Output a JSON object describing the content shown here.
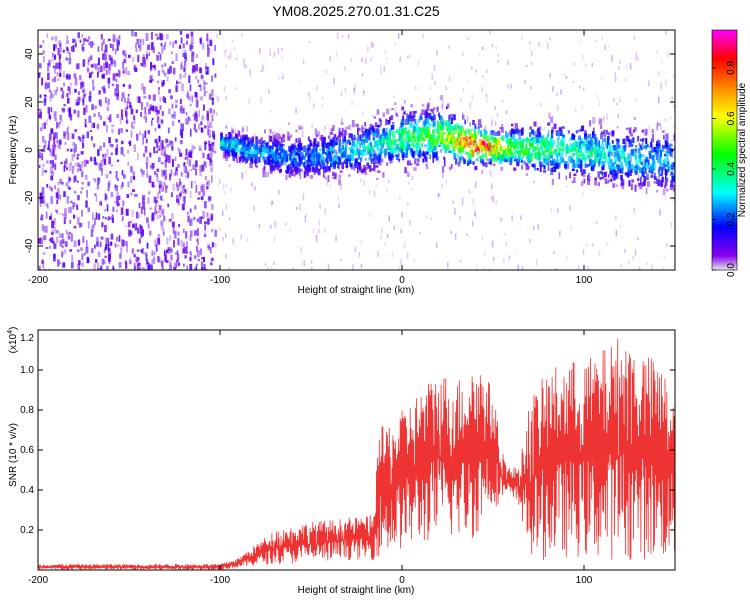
{
  "title": "YM08.2025.270.01.31.C25",
  "chart_data": [
    {
      "type": "heatmap",
      "name": "spectrogram",
      "title": "YM08.2025.270.01.31.C25",
      "xlabel": "Height of straight line (km)",
      "ylabel": "Frequency (Hz)",
      "xlim": [
        -200,
        150
      ],
      "ylim": [
        -50,
        50
      ],
      "x_ticks": [
        -200,
        -100,
        0,
        100
      ],
      "x_tick_labels": [
        "-200",
        "-100",
        "0",
        "100"
      ],
      "y_ticks": [
        -40,
        -20,
        0,
        20,
        40
      ],
      "y_tick_labels": [
        "-40",
        "-20",
        "0",
        "20",
        "40"
      ],
      "colorbar": {
        "label": "Normalized spectral amplitude",
        "range": [
          0,
          0.95
        ],
        "ticks": [
          0.0,
          0.2,
          0.4,
          0.6,
          0.8
        ],
        "tick_labels": [
          "0.0",
          "0.2",
          "0.4",
          "0.6",
          "0.8"
        ],
        "colormap": [
          "#e0e0e0",
          "#7700ee",
          "#0000ff",
          "#00ffff",
          "#00ff00",
          "#ffff00",
          "#ff8800",
          "#ff0000",
          "#ff00ff"
        ]
      },
      "noise_region_x": [
        -200,
        -103
      ],
      "signal_band": {
        "x": [
          -100,
          -80,
          -60,
          -40,
          -20,
          0,
          20,
          40,
          50,
          60,
          80,
          100,
          120,
          140,
          150
        ],
        "center_hz": [
          4,
          0,
          -2,
          -1,
          2,
          6,
          7,
          3,
          2,
          2,
          1,
          0,
          -2,
          -3,
          -4
        ],
        "half_width_hz": [
          5,
          8,
          10,
          10,
          11,
          12,
          12,
          9,
          7,
          9,
          12,
          12,
          13,
          13,
          13
        ],
        "peak_amplitude": [
          0.35,
          0.3,
          0.25,
          0.3,
          0.35,
          0.45,
          0.55,
          0.9,
          0.85,
          0.5,
          0.45,
          0.4,
          0.35,
          0.3,
          0.3
        ]
      }
    },
    {
      "type": "line",
      "name": "snr",
      "xlabel": "Height of straight line (km)",
      "ylabel": "SNR (10 * v/v)",
      "multiplier_label": "(x10",
      "multiplier_exp": "4",
      "xlim": [
        -200,
        150
      ],
      "ylim": [
        0,
        1.2
      ],
      "x_ticks": [
        -200,
        -100,
        0,
        100
      ],
      "x_tick_labels": [
        "-200",
        "-100",
        "0",
        "100"
      ],
      "y_ticks": [
        0.2,
        0.4,
        0.6,
        0.8,
        1.0,
        1.2
      ],
      "y_tick_labels": [
        "0.2",
        "0.4",
        "0.6",
        "0.8",
        "1.0",
        "1.2"
      ],
      "color": "#ee3333",
      "envelope": {
        "x": [
          -200,
          -110,
          -100,
          -90,
          -80,
          -70,
          -60,
          -50,
          -40,
          -30,
          -20,
          -15,
          -14,
          -5,
          0,
          10,
          20,
          30,
          40,
          45,
          50,
          55,
          60,
          65,
          70,
          80,
          90,
          100,
          110,
          120,
          130,
          140,
          150
        ],
        "upper": [
          0.03,
          0.03,
          0.03,
          0.06,
          0.13,
          0.2,
          0.22,
          0.24,
          0.25,
          0.26,
          0.27,
          0.28,
          0.7,
          0.75,
          0.8,
          0.9,
          1.0,
          0.95,
          1.05,
          1.0,
          0.9,
          0.6,
          0.5,
          0.55,
          0.85,
          1.0,
          1.05,
          1.05,
          1.1,
          1.18,
          1.1,
          1.05,
          0.9
        ],
        "lower": [
          0.0,
          0.0,
          0.0,
          0.01,
          0.02,
          0.03,
          0.03,
          0.04,
          0.04,
          0.05,
          0.05,
          0.05,
          0.06,
          0.08,
          0.1,
          0.12,
          0.15,
          0.15,
          0.15,
          0.25,
          0.3,
          0.35,
          0.35,
          0.3,
          0.05,
          0.05,
          0.06,
          0.06,
          0.05,
          0.05,
          0.05,
          0.05,
          0.05
        ]
      }
    }
  ]
}
